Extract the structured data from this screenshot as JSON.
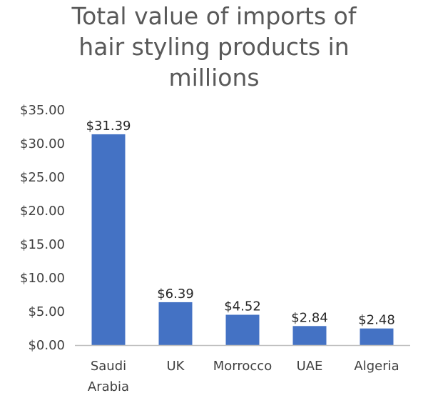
{
  "chart_data": {
    "type": "bar",
    "title_lines": [
      "Total value of imports of",
      "hair styling products in",
      "millions"
    ],
    "categories": [
      [
        "Saudi",
        "Arabia"
      ],
      [
        "UK"
      ],
      [
        "Morrocco"
      ],
      [
        "UAE"
      ],
      [
        "Algeria"
      ]
    ],
    "values": [
      31.39,
      6.39,
      4.52,
      2.84,
      2.48
    ],
    "data_labels": [
      "$31.39",
      "$6.39",
      "$4.52",
      "$2.84",
      "$2.48"
    ],
    "y_ticks": [
      0,
      5,
      10,
      15,
      20,
      25,
      30,
      35
    ],
    "y_tick_labels": [
      "$0.00",
      "$5.00",
      "$10.00",
      "$15.00",
      "$20.00",
      "$25.00",
      "$30.00",
      "$35.00"
    ],
    "ylim": [
      0,
      35
    ],
    "xlabel": "",
    "ylabel": "",
    "grid": false,
    "legend": "none",
    "colors": {
      "bar": "#4472C4",
      "axis": "#BFBFBF",
      "title": "#595959",
      "text": "#404040"
    }
  }
}
